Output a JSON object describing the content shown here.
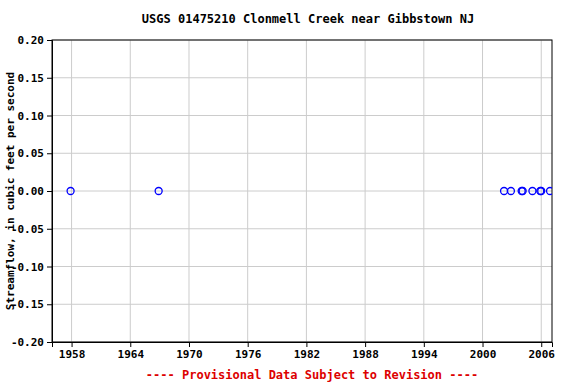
{
  "chart_data": {
    "type": "scatter",
    "title": "USGS 01475210 Clonmell Creek near Gibbstown NJ",
    "y_label": "Streamflow, in cubic feet per second",
    "annotations": [
      "---- Provisional Data Subject to Revision ----"
    ],
    "x": [
      1957.9,
      1966.9,
      2002.2,
      2002.9,
      2004.0,
      2004.1,
      2005.1,
      2005.9,
      2006.0,
      2006.9
    ],
    "values": [
      0,
      0,
      0,
      0,
      0,
      0,
      0,
      0,
      0,
      0
    ],
    "color": "#0000ff",
    "marker": "open-circle",
    "xlim": [
      1956.0,
      2007.1
    ],
    "xticks": [
      1958,
      1964,
      1970,
      1976,
      1982,
      1988,
      1994,
      2000,
      2006
    ],
    "ylim": [
      -0.2,
      0.2
    ],
    "yticks": [
      {
        "value": -0.2,
        "label": "-0.20"
      },
      {
        "value": -0.15,
        "label": "-0.15"
      },
      {
        "value": -0.1,
        "label": "-0.10"
      },
      {
        "value": -0.05,
        "label": "-0.05"
      },
      {
        "value": 0,
        "label": "0.00"
      },
      {
        "value": 0.05,
        "label": "0.05"
      },
      {
        "value": 0.1,
        "label": "0.10"
      },
      {
        "value": 0.15,
        "label": "0.15"
      },
      {
        "value": 0.2,
        "label": "0.20"
      }
    ],
    "grid": true
  }
}
